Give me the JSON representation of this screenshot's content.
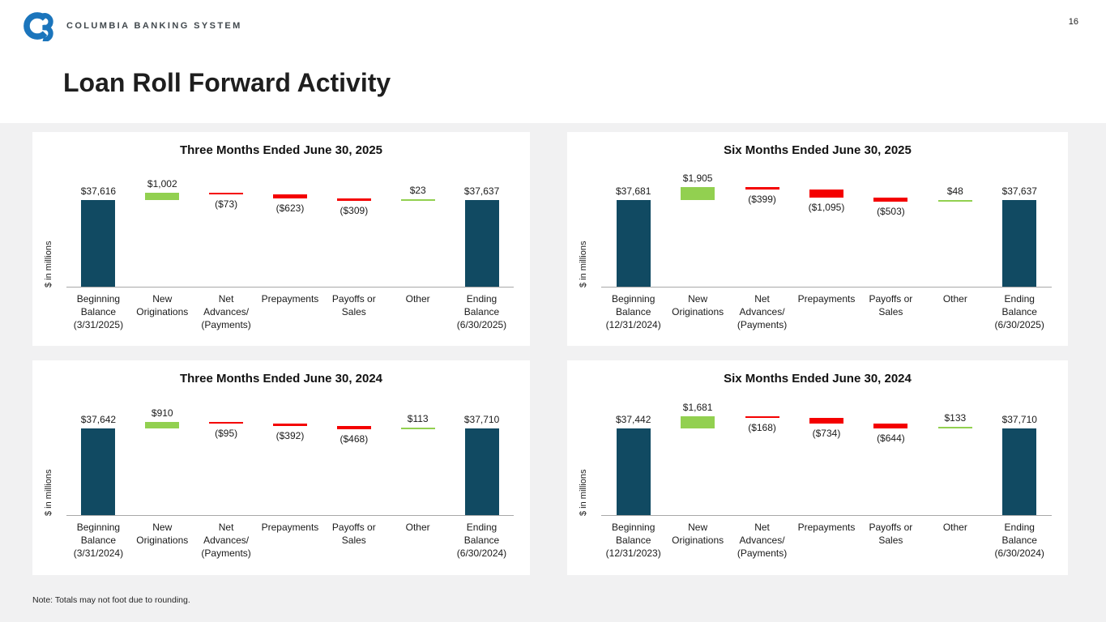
{
  "header": {
    "brand": "COLUMBIA BANKING SYSTEM",
    "page_number": "16"
  },
  "slide": {
    "title": "Loan Roll Forward Activity",
    "note": "Note: Totals may not foot due to rounding."
  },
  "colors": {
    "logo_blue": "#1B75BC",
    "total_bar": "#114A62",
    "increase_bar": "#92D050",
    "decrease_bar": "#F40000",
    "axis": "#A8A8A8",
    "panel_bg": "#FFFFFF",
    "slide_bg": "#F1F1F2"
  },
  "chart_data": [
    {
      "type": "bar",
      "subtype": "waterfall",
      "title": "Three Months Ended June 30, 2025",
      "ylabel": "$ in millions",
      "ylim": [
        0,
        40000
      ],
      "grid": false,
      "legend": "none",
      "steps": [
        {
          "category": "Beginning\nBalance\n(3/31/2025)",
          "value": 37616,
          "label": "$37,616",
          "role": "total"
        },
        {
          "category": "New\nOriginations",
          "value": 1002,
          "label": "$1,002",
          "role": "increase"
        },
        {
          "category": "Net\nAdvances/\n(Payments)",
          "value": -73,
          "label": "($73)",
          "role": "decrease"
        },
        {
          "category": "Prepayments",
          "value": -623,
          "label": "($623)",
          "role": "decrease"
        },
        {
          "category": "Payoffs or\nSales",
          "value": -309,
          "label": "($309)",
          "role": "decrease"
        },
        {
          "category": "Other",
          "value": 23,
          "label": "$23",
          "role": "increase"
        },
        {
          "category": "Ending\nBalance\n(6/30/2025)",
          "value": 37637,
          "label": "$37,637",
          "role": "total"
        }
      ]
    },
    {
      "type": "bar",
      "subtype": "waterfall",
      "title": "Six Months Ended June 30, 2025",
      "ylabel": "$ in millions",
      "ylim": [
        0,
        40000
      ],
      "grid": false,
      "legend": "none",
      "steps": [
        {
          "category": "Beginning\nBalance\n(12/31/2024)",
          "value": 37681,
          "label": "$37,681",
          "role": "total"
        },
        {
          "category": "New\nOriginations",
          "value": 1905,
          "label": "$1,905",
          "role": "increase"
        },
        {
          "category": "Net\nAdvances/\n(Payments)",
          "value": -399,
          "label": "($399)",
          "role": "decrease"
        },
        {
          "category": "Prepayments",
          "value": -1095,
          "label": "($1,095)",
          "role": "decrease"
        },
        {
          "category": "Payoffs or\nSales",
          "value": -503,
          "label": "($503)",
          "role": "decrease"
        },
        {
          "category": "Other",
          "value": 48,
          "label": "$48",
          "role": "increase"
        },
        {
          "category": "Ending\nBalance\n(6/30/2025)",
          "value": 37637,
          "label": "$37,637",
          "role": "total"
        }
      ]
    },
    {
      "type": "bar",
      "subtype": "waterfall",
      "title": "Three Months Ended June 30, 2024",
      "ylabel": "$ in millions",
      "ylim": [
        0,
        40000
      ],
      "grid": false,
      "legend": "none",
      "steps": [
        {
          "category": "Beginning\nBalance\n(3/31/2024)",
          "value": 37642,
          "label": "$37,642",
          "role": "total"
        },
        {
          "category": "New\nOriginations",
          "value": 910,
          "label": "$910",
          "role": "increase"
        },
        {
          "category": "Net\nAdvances/\n(Payments)",
          "value": -95,
          "label": "($95)",
          "role": "decrease"
        },
        {
          "category": "Prepayments",
          "value": -392,
          "label": "($392)",
          "role": "decrease"
        },
        {
          "category": "Payoffs or\nSales",
          "value": -468,
          "label": "($468)",
          "role": "decrease"
        },
        {
          "category": "Other",
          "value": 113,
          "label": "$113",
          "role": "increase"
        },
        {
          "category": "Ending\nBalance\n(6/30/2024)",
          "value": 37710,
          "label": "$37,710",
          "role": "total"
        }
      ]
    },
    {
      "type": "bar",
      "subtype": "waterfall",
      "title": "Six Months Ended June 30, 2024",
      "ylabel": "$ in millions",
      "ylim": [
        0,
        40000
      ],
      "grid": false,
      "legend": "none",
      "steps": [
        {
          "category": "Beginning\nBalance\n(12/31/2023)",
          "value": 37442,
          "label": "$37,442",
          "role": "total"
        },
        {
          "category": "New\nOriginations",
          "value": 1681,
          "label": "$1,681",
          "role": "increase"
        },
        {
          "category": "Net\nAdvances/\n(Payments)",
          "value": -168,
          "label": "($168)",
          "role": "decrease"
        },
        {
          "category": "Prepayments",
          "value": -734,
          "label": "($734)",
          "role": "decrease"
        },
        {
          "category": "Payoffs or\nSales",
          "value": -644,
          "label": "($644)",
          "role": "decrease"
        },
        {
          "category": "Other",
          "value": 133,
          "label": "$133",
          "role": "increase"
        },
        {
          "category": "Ending\nBalance\n(6/30/2024)",
          "value": 37710,
          "label": "$37,710",
          "role": "total"
        }
      ]
    }
  ]
}
